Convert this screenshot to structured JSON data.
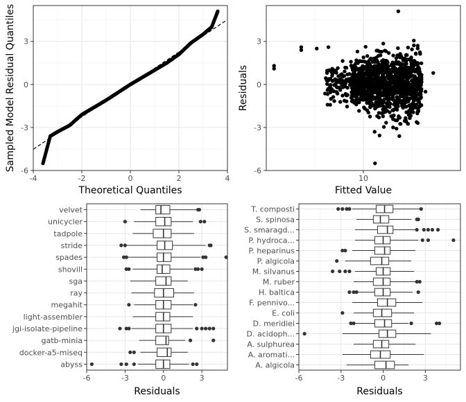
{
  "chart_data": [
    {
      "type": "scatter",
      "subtype": "qq",
      "xlabel": "Theoretical Quantiles",
      "ylabel": "Sampled Model Residual Quantiles",
      "xlim": [
        -4,
        4
      ],
      "ylim": [
        -6,
        5.5
      ],
      "xticks": [
        "-4",
        "-2",
        "0",
        "2",
        "4"
      ],
      "yticks": [
        "-6",
        "-3",
        "0",
        "3"
      ],
      "reference_line": {
        "slope": 1.13,
        "intercept": 0
      },
      "sample_points": [
        {
          "x": -3.6,
          "y": -5.5
        },
        {
          "x": -3.3,
          "y": -3.6
        },
        {
          "x": -3.0,
          "y": -3.3
        },
        {
          "x": -2.5,
          "y": -2.85
        },
        {
          "x": -2.0,
          "y": -2.1
        },
        {
          "x": -1.5,
          "y": -1.6
        },
        {
          "x": -1.0,
          "y": -1.1
        },
        {
          "x": -0.5,
          "y": -0.55
        },
        {
          "x": 0.0,
          "y": 0.0
        },
        {
          "x": 0.5,
          "y": 0.5
        },
        {
          "x": 1.0,
          "y": 1.0
        },
        {
          "x": 1.5,
          "y": 1.5
        },
        {
          "x": 2.0,
          "y": 2.1
        },
        {
          "x": 2.5,
          "y": 2.9
        },
        {
          "x": 3.0,
          "y": 3.5
        },
        {
          "x": 3.35,
          "y": 4.0
        },
        {
          "x": 3.6,
          "y": 5.1
        }
      ]
    },
    {
      "type": "scatter",
      "xlabel": "Fitted Value",
      "ylabel": "Residuals",
      "xlim": [
        7.5,
        12.5
      ],
      "ylim": [
        -6,
        5.5
      ],
      "xticks": [
        "10"
      ],
      "yticks": [
        "-6",
        "-3",
        "0",
        "3"
      ],
      "x_cluster_range": [
        9.0,
        11.5
      ],
      "outliers": [
        {
          "x": 7.7,
          "y": 1.3
        },
        {
          "x": 7.7,
          "y": 1.1
        },
        {
          "x": 8.4,
          "y": 2.6
        },
        {
          "x": 8.4,
          "y": 2.4
        },
        {
          "x": 8.8,
          "y": 2.5
        },
        {
          "x": 9.1,
          "y": 2.6
        },
        {
          "x": 9.4,
          "y": -0.3
        },
        {
          "x": 10.9,
          "y": 5.1
        },
        {
          "x": 10.3,
          "y": -5.5
        },
        {
          "x": 11.6,
          "y": -0.5
        },
        {
          "x": 11.8,
          "y": 0.8
        },
        {
          "x": 11.4,
          "y": 2.7
        }
      ]
    },
    {
      "type": "boxplot",
      "xlabel": "Residuals",
      "xlim": [
        -6,
        5
      ],
      "xticks": [
        "-6",
        "-3",
        "0",
        "3"
      ],
      "categories": [
        "velvet",
        "unicycler",
        "tadpole",
        "stride",
        "spades",
        "shovill",
        "sga",
        "ray",
        "megahit",
        "light-assembler",
        "jgi-isolate-pipeline",
        "gatb-minia",
        "docker-a5-miseq",
        "abyss"
      ],
      "boxes": [
        {
          "q1": -0.6,
          "median": -0.2,
          "q3": 0.5,
          "whisker_low": -1.8,
          "whisker_high": 2.6,
          "outliers": [
            2.7,
            2.8
          ]
        },
        {
          "q1": -0.6,
          "median": 0.1,
          "q3": 0.6,
          "whisker_low": -2.3,
          "whisker_high": 2.3,
          "outliers": [
            -3.0,
            2.9,
            3.2
          ]
        },
        {
          "q1": -0.8,
          "median": 0.0,
          "q3": 0.6,
          "whisker_low": -2.4,
          "whisker_high": 2.4,
          "outliers": []
        },
        {
          "q1": -0.5,
          "median": 0.1,
          "q3": 0.7,
          "whisker_low": -2.9,
          "whisker_high": 3.3,
          "outliers": [
            -3.3,
            -3.0,
            3.6,
            3.7
          ]
        },
        {
          "q1": -0.5,
          "median": 0.0,
          "q3": 0.6,
          "whisker_low": -2.8,
          "whisker_high": 2.9,
          "outliers": [
            -3.1,
            -2.9,
            3.1,
            3.3,
            4.9
          ]
        },
        {
          "q1": -0.5,
          "median": -0.1,
          "q3": 0.5,
          "whisker_low": -2.4,
          "whisker_high": 2.3,
          "outliers": [
            -2.9,
            -2.7,
            2.5,
            2.7,
            3.0
          ]
        },
        {
          "q1": -0.6,
          "median": 0.2,
          "q3": 0.6,
          "whisker_low": -2.6,
          "whisker_high": 1.9,
          "outliers": []
        },
        {
          "q1": -0.7,
          "median": 0.0,
          "q3": 0.8,
          "whisker_low": -2.5,
          "whisker_high": 2.4,
          "outliers": []
        },
        {
          "q1": -0.6,
          "median": 0.0,
          "q3": 0.6,
          "whisker_low": -2.3,
          "whisker_high": 2.3,
          "outliers": [
            -2.7,
            2.5
          ]
        },
        {
          "q1": -0.6,
          "median": 0.0,
          "q3": 0.5,
          "whisker_low": -2.4,
          "whisker_high": 2.3,
          "outliers": []
        },
        {
          "q1": -0.6,
          "median": 0.0,
          "q3": 0.6,
          "whisker_low": -2.5,
          "whisker_high": 2.3,
          "outliers": [
            -3.4,
            -2.9,
            -2.7,
            2.6,
            3.0,
            3.3,
            3.6,
            3.9
          ]
        },
        {
          "q1": -0.6,
          "median": 0.2,
          "q3": 0.4,
          "whisker_low": -1.9,
          "whisker_high": 1.7,
          "outliers": [
            2.1,
            3.9
          ]
        },
        {
          "q1": -0.5,
          "median": 0.3,
          "q3": 0.6,
          "whisker_low": -1.8,
          "whisker_high": 1.9,
          "outliers": [
            -2.6,
            -2.3
          ]
        },
        {
          "q1": -0.6,
          "median": 0.0,
          "q3": 0.5,
          "whisker_low": -2.0,
          "whisker_high": 2.0,
          "outliers": [
            -5.6,
            -3.3,
            -2.9,
            -2.3,
            2.3,
            2.6
          ]
        }
      ]
    },
    {
      "type": "boxplot",
      "xlabel": "Residuals",
      "xlim": [
        -6,
        5.5
      ],
      "xticks": [
        "-6",
        "-3",
        "0",
        "3"
      ],
      "categories": [
        "T. composti",
        "S. spinosa",
        "S. smaragd...",
        "P. hydroca...",
        "P. heparinus",
        "P. algicola",
        "M. silvanus",
        "M. ruber",
        "H. baltica",
        "F. pennivo...",
        "E. coli",
        "D. meridiei",
        "D. acidoph...",
        "A. sulphurea",
        "A. aromati...",
        "A. algicola"
      ],
      "boxes": [
        {
          "q1": -0.5,
          "median": 0.1,
          "q3": 0.7,
          "whisker_low": -2.2,
          "whisker_high": 2.6,
          "outliers": [
            -3.2,
            -2.9,
            -2.6,
            -2.4,
            2.7
          ]
        },
        {
          "q1": -0.7,
          "median": -0.2,
          "q3": 0.4,
          "whisker_low": -1.9,
          "whisker_high": 2.0,
          "outliers": [
            2.4,
            2.5
          ]
        },
        {
          "q1": -0.4,
          "median": 0.3,
          "q3": 0.7,
          "whisker_low": -2.0,
          "whisker_high": 2.3,
          "outliers": [
            2.4,
            2.9,
            3.2,
            3.5,
            3.9
          ]
        },
        {
          "q1": -0.6,
          "median": 0.0,
          "q3": 0.5,
          "whisker_low": -2.0,
          "whisker_high": 2.5,
          "outliers": [
            2.8,
            3.2,
            5.0
          ]
        },
        {
          "q1": -0.6,
          "median": 0.1,
          "q3": 0.5,
          "whisker_low": -2.2,
          "whisker_high": 2.3,
          "outliers": [
            -2.9,
            -2.7
          ]
        },
        {
          "q1": -0.9,
          "median": -0.1,
          "q3": 0.4,
          "whisker_low": -2.7,
          "whisker_high": 2.0,
          "outliers": [
            -3.3
          ]
        },
        {
          "q1": -0.5,
          "median": 0.0,
          "q3": 0.5,
          "whisker_low": -2.0,
          "whisker_high": 2.2,
          "outliers": [
            -3.6,
            -3.1,
            -2.7,
            -2.4
          ]
        },
        {
          "q1": -0.7,
          "median": 0.0,
          "q3": 0.5,
          "whisker_low": -2.1,
          "whisker_high": 2.3,
          "outliers": [
            2.4,
            2.6
          ]
        },
        {
          "q1": -0.6,
          "median": 0.0,
          "q3": 0.5,
          "whisker_low": -2.0,
          "whisker_high": 2.1,
          "outliers": [
            -2.4,
            -2.1,
            -1.9,
            2.5
          ]
        },
        {
          "q1": -0.4,
          "median": 0.3,
          "q3": 0.9,
          "whisker_low": -2.2,
          "whisker_high": 2.8,
          "outliers": []
        },
        {
          "q1": -0.7,
          "median": -0.1,
          "q3": 0.6,
          "whisker_low": -2.1,
          "whisker_high": 2.2,
          "outliers": [
            -2.9
          ]
        },
        {
          "q1": -0.6,
          "median": 0.1,
          "q3": 0.6,
          "whisker_low": -2.0,
          "whisker_high": 1.8,
          "outliers": [
            -2.3,
            -2.1,
            2.0,
            3.8,
            4.0
          ]
        },
        {
          "q1": -0.3,
          "median": 0.3,
          "q3": 0.9,
          "whisker_low": -2.9,
          "whisker_high": 3.4,
          "outliers": [
            -5.6
          ]
        },
        {
          "q1": -0.7,
          "median": -0.1,
          "q3": 0.4,
          "whisker_low": -2.1,
          "whisker_high": 2.3,
          "outliers": []
        },
        {
          "q1": -0.9,
          "median": -0.2,
          "q3": 0.5,
          "whisker_low": -2.9,
          "whisker_high": 2.9,
          "outliers": []
        },
        {
          "q1": -0.6,
          "median": 0.2,
          "q3": 0.8,
          "whisker_low": -2.6,
          "whisker_high": 1.8,
          "outliers": []
        }
      ]
    }
  ]
}
